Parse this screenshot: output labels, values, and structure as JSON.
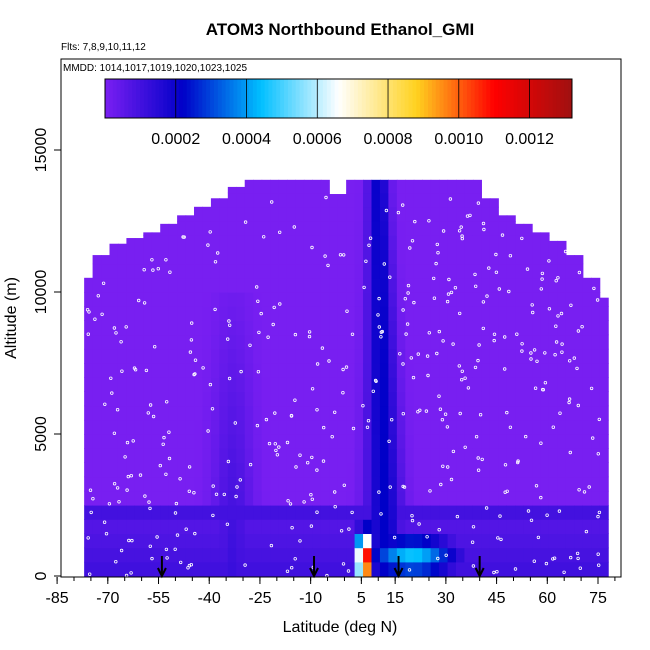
{
  "chart_data": {
    "type": "heatmap",
    "title": "ATOM3 Northbound Ethanol_GMI",
    "subtitle_flights": "Flts: 7,8,9,10,11,12",
    "subtitle_dates": "MMDD: 1014,1017,1019,1020,1023,1025",
    "xlabel": "Latitude (deg N)",
    "ylabel": "Altitude (m)",
    "xlim": [
      -85,
      80
    ],
    "ylim": [
      0,
      18000
    ],
    "x_ticks": [
      -85,
      -70,
      -55,
      -40,
      -25,
      -10,
      5,
      15,
      30,
      45,
      60,
      75
    ],
    "y_ticks": [
      0,
      5000,
      10000,
      15000
    ],
    "colorbar": {
      "range": [
        0,
        0.00132
      ],
      "tick_values": [
        0.0002,
        0.0004,
        0.0006,
        0.0008,
        0.001,
        0.0012
      ],
      "tick_labels": [
        "0.0002",
        "0.0004",
        "0.0006",
        "0.0008",
        "0.0010",
        "0.0012"
      ],
      "colors": [
        "#7a1ff2",
        "#0000c8",
        "#00bfff",
        "#ffffff",
        "#ffd21f",
        "#ff0000",
        "#a01010"
      ],
      "placement": "top inside plot"
    },
    "arrow_latitudes": [
      -54,
      -9,
      16,
      40
    ],
    "field_ceiling": [
      [
        -77,
        10500
      ],
      [
        -72,
        11300
      ],
      [
        -67,
        11700
      ],
      [
        -62,
        11900
      ],
      [
        -57,
        12100
      ],
      [
        -52,
        12400
      ],
      [
        -47,
        12700
      ],
      [
        -42,
        13000
      ],
      [
        -37,
        13300
      ],
      [
        -32,
        13700
      ],
      [
        -27,
        13950
      ],
      [
        -22,
        13950
      ],
      [
        -17,
        13950
      ],
      [
        -12,
        13950
      ],
      [
        -7,
        13950
      ],
      [
        -2,
        13450
      ],
      [
        3,
        13950
      ],
      [
        8,
        13950
      ],
      [
        13,
        13950
      ],
      [
        18,
        13950
      ],
      [
        23,
        13950
      ],
      [
        28,
        13950
      ],
      [
        33,
        13950
      ],
      [
        38,
        13950
      ],
      [
        43,
        13300
      ],
      [
        48,
        12700
      ],
      [
        53,
        12400
      ],
      [
        58,
        12100
      ],
      [
        63,
        11800
      ],
      [
        68,
        11300
      ],
      [
        73,
        10500
      ],
      [
        78,
        9800
      ]
    ],
    "features": {
      "background_value": 3e-06,
      "tropical_plume": {
        "lat_center": 12,
        "alt_top": 14000,
        "peak_value": 0.00125,
        "peak_lat": 6,
        "peak_alt": 600
      },
      "lower_trop_band_2500m": {
        "lat_range": [
          -70,
          80
        ],
        "value": 0.0001
      },
      "south_tongue": {
        "lat_center": -33,
        "alt_top": 10000,
        "value": 0.00012
      }
    }
  }
}
